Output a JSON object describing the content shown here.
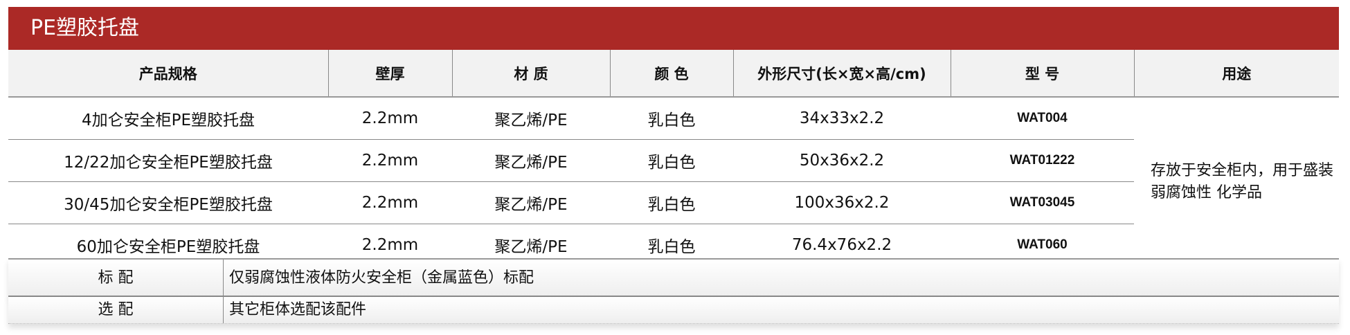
{
  "title": "PE塑胶托盘",
  "headers": [
    "产品规格",
    "壁厚",
    "材 质",
    "颜 色",
    "外形尺寸(长×宽×高/cm)",
    "型 号",
    "用途"
  ],
  "rows": [
    {
      "spec": "4加仑安全柜PE塑胶托盘",
      "thickness": "2.2mm",
      "material": "聚乙烯/PE",
      "color": "乳白色",
      "size": "34x33x2.2",
      "model": "WAT004"
    },
    {
      "spec": "12/22加仑安全柜PE塑胶托盘",
      "thickness": "2.2mm",
      "material": "聚乙烯/PE",
      "color": "乳白色",
      "size": "50x36x2.2",
      "model": "WAT01222"
    },
    {
      "spec": "30/45加仑安全柜PE塑胶托盘",
      "thickness": "2.2mm",
      "material": "聚乙烯/PE",
      "color": "乳白色",
      "size": "100x36x2.2",
      "model": "WAT03045"
    },
    {
      "spec": "60加仑安全柜PE塑胶托盘",
      "thickness": "2.2mm",
      "material": "聚乙烯/PE",
      "color": "乳白色",
      "size": "76.4x76x2.2",
      "model": "WAT060"
    }
  ],
  "usage": "存放于安全柜内，用于盛装弱腐蚀性 化学品",
  "footer": [
    {
      "label": "标 配",
      "value": "仅弱腐蚀性液体防火安全柜（金属蓝色）标配"
    },
    {
      "label": "选 配",
      "value": "其它柜体选配该配件"
    }
  ],
  "colors": {
    "title_bar": "#ab2926",
    "header_bg": "#f2f2f2"
  }
}
